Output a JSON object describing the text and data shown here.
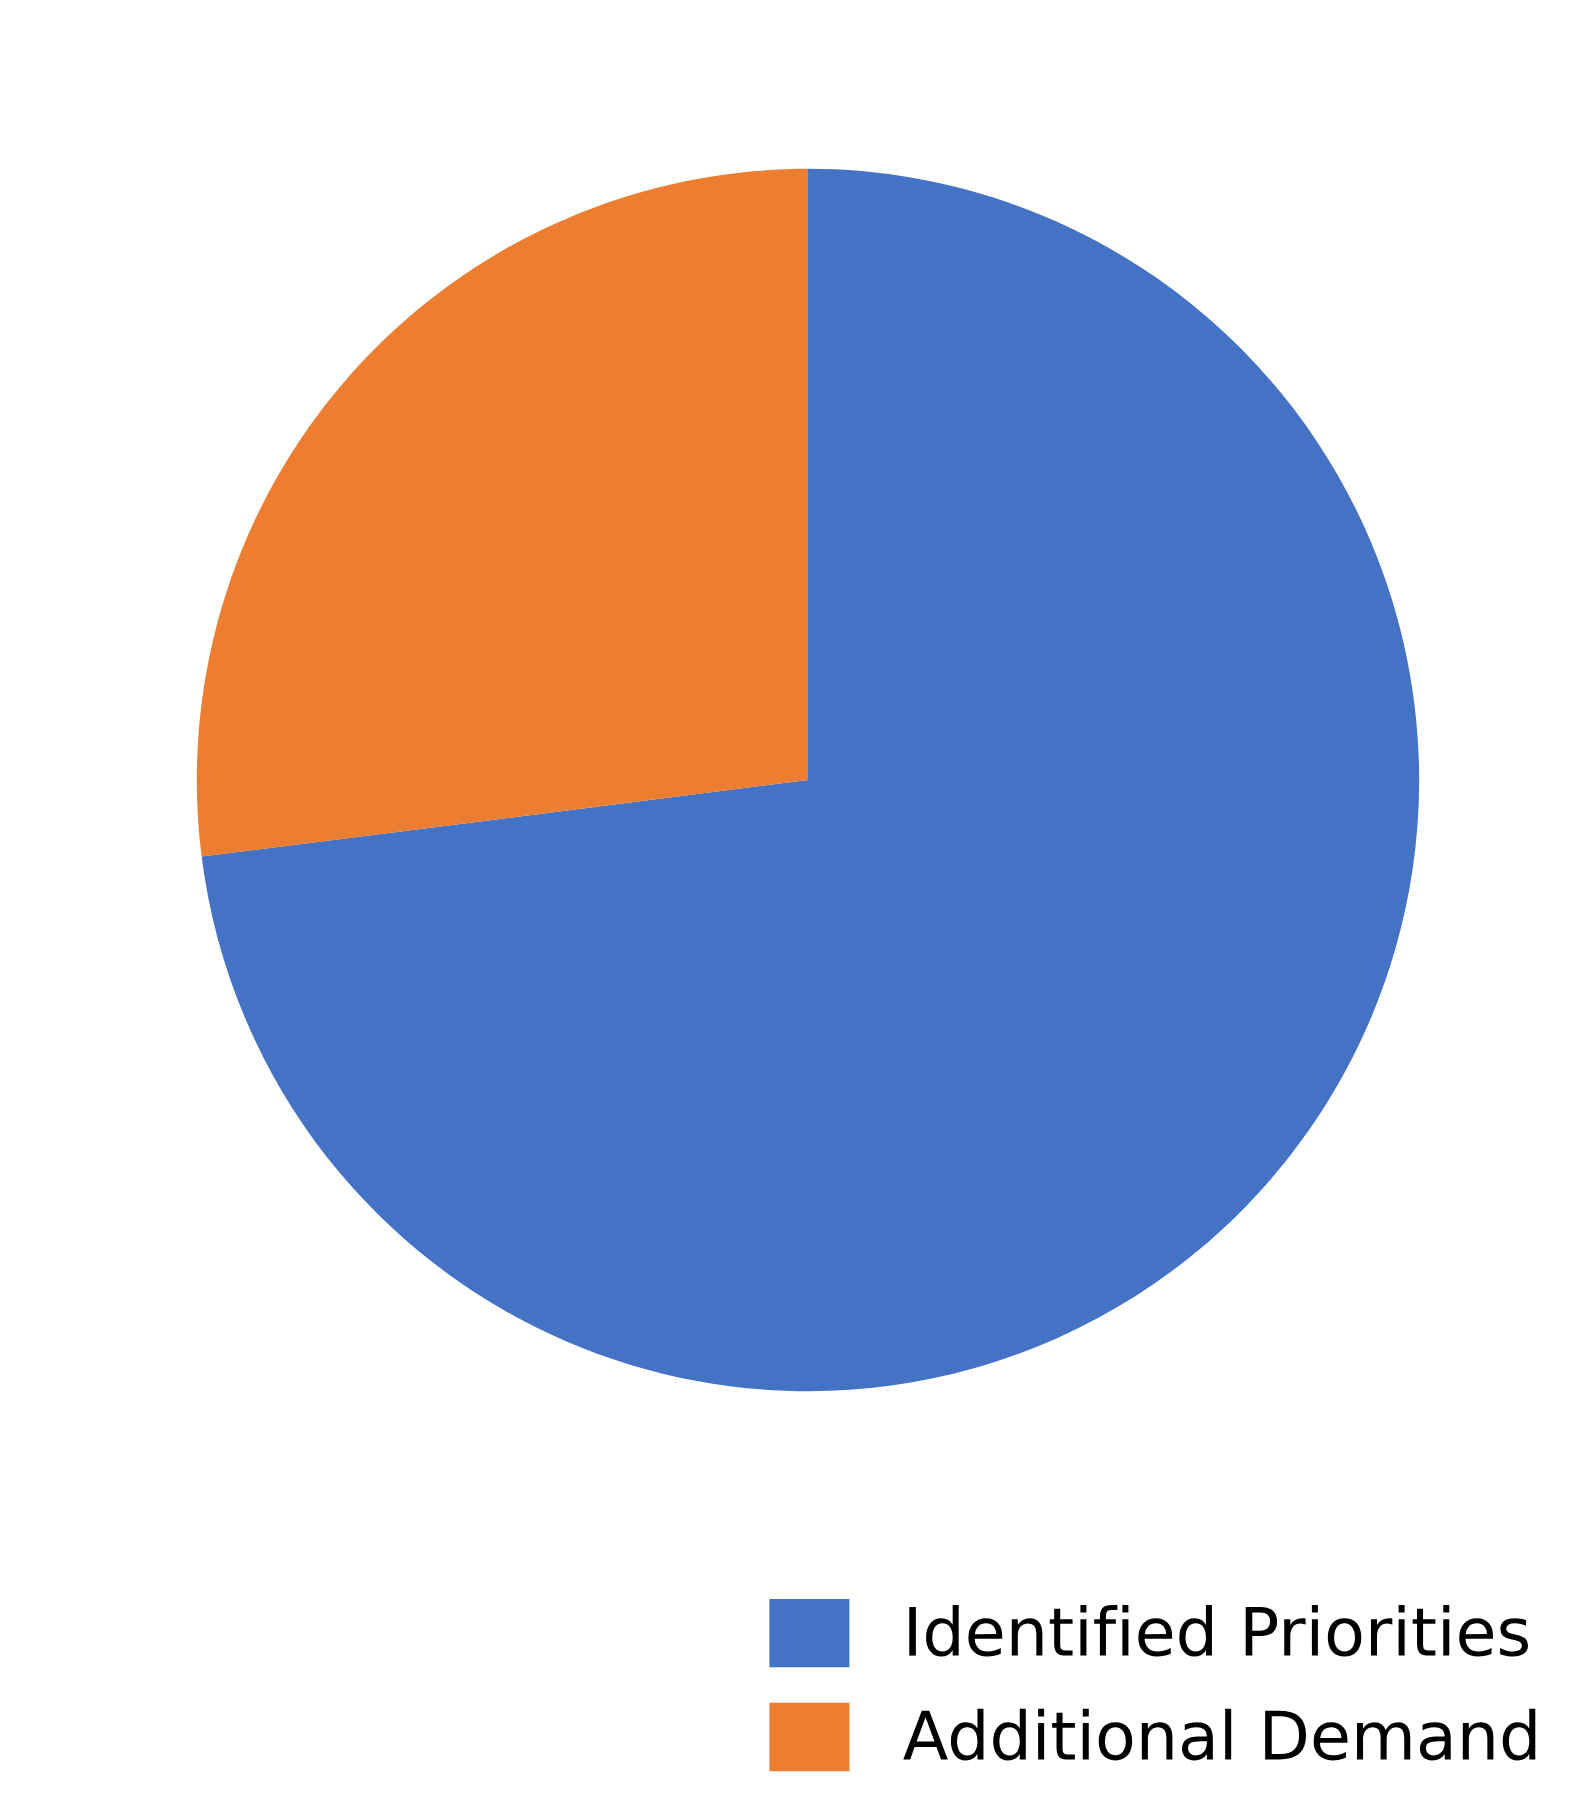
{
  "chart_data": {
    "type": "pie",
    "categories": [
      "Identified Priorities",
      "Additional Demand"
    ],
    "values": [
      73,
      27
    ],
    "colors": [
      "#4472c4",
      "#ed7d31"
    ],
    "legend": "bottom right"
  }
}
